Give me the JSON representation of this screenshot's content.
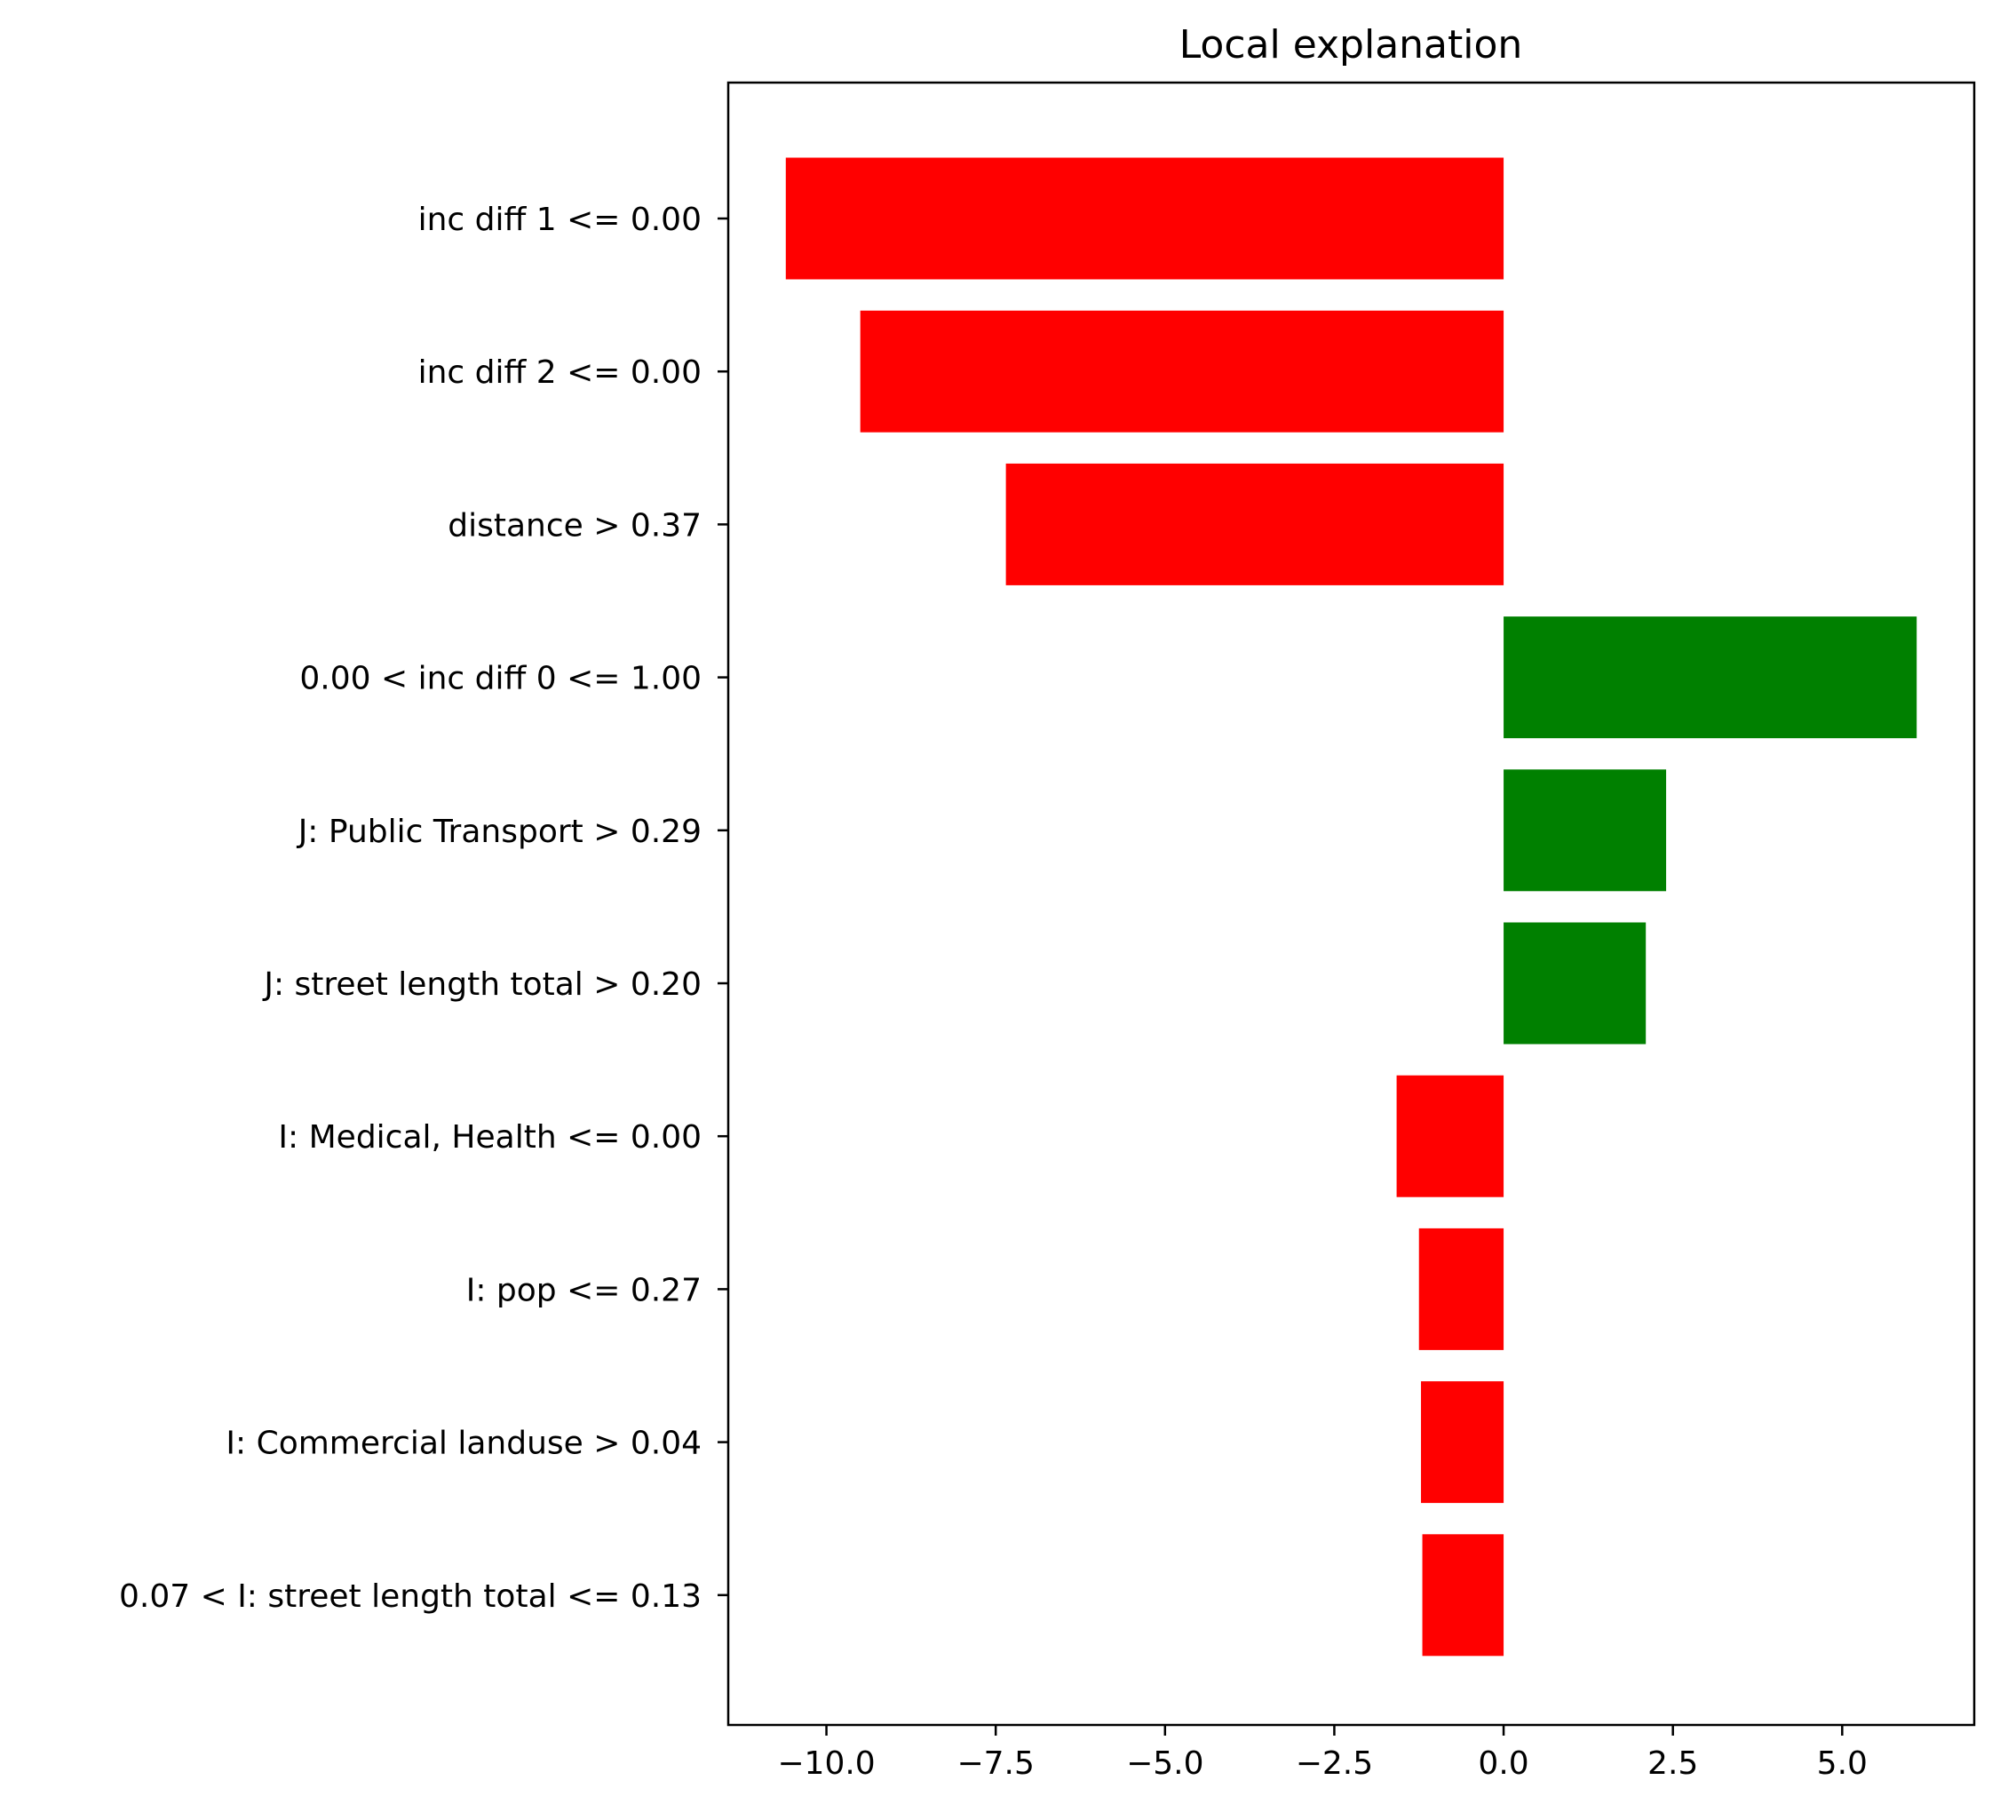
{
  "chart_data": {
    "type": "bar",
    "orientation": "horizontal",
    "title": "Local explanation",
    "xlabel": "",
    "ylabel": "",
    "categories": [
      "inc diff 1 <= 0.00",
      "inc diff 2 <= 0.00",
      "distance > 0.37",
      "0.00 < inc diff 0 <= 1.00",
      "J: Public Transport > 0.29",
      "J: street length total > 0.20",
      "I: Medical, Health <= 0.00",
      "I: pop <= 0.27",
      "I: Commercial landuse > 0.04",
      "0.07 < I: street length total <= 0.13"
    ],
    "values": [
      -10.6,
      -9.5,
      -7.35,
      6.1,
      2.4,
      2.1,
      -1.58,
      -1.25,
      -1.22,
      -1.2
    ],
    "xlim": [
      -11.45,
      6.95
    ],
    "xticks": [
      -10.0,
      -7.5,
      -5.0,
      -2.5,
      0.0,
      2.5,
      5.0
    ],
    "xtick_labels": [
      "−10.0",
      "−7.5",
      "−5.0",
      "−2.5",
      "0.0",
      "2.5",
      "5.0"
    ],
    "colors": {
      "positive": "#008000",
      "negative": "#ff0000"
    },
    "grid": false,
    "legend": false
  }
}
